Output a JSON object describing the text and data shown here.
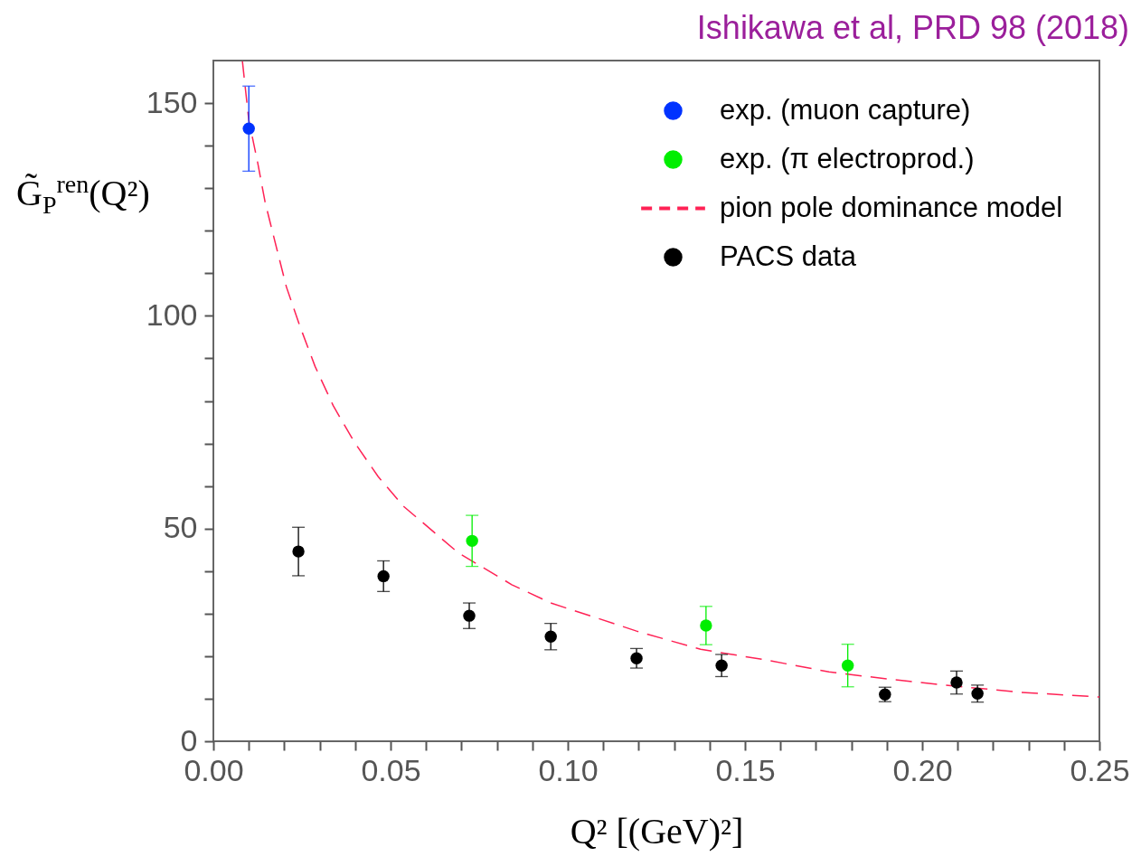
{
  "chart_data": {
    "type": "scatter",
    "title": "Ishikawa et al, PRD 98 (2018)",
    "xlabel": "Q² [(GeV)²]",
    "ylabel": "G̃$_{P}$$^{ren}$(Q²)",
    "xlim": [
      0,
      0.25
    ],
    "ylim": [
      0,
      160
    ],
    "xticks": [
      {
        "value": 0,
        "label": "0.00"
      },
      {
        "value": 0.01,
        "label": null
      },
      {
        "value": 0.02,
        "label": null
      },
      {
        "value": 0.03,
        "label": null
      },
      {
        "value": 0.04,
        "label": null
      },
      {
        "value": 0.05,
        "label": "0.05"
      },
      {
        "value": 0.06,
        "label": null
      },
      {
        "value": 0.07,
        "label": null
      },
      {
        "value": 0.08,
        "label": null
      },
      {
        "value": 0.09,
        "label": null
      },
      {
        "value": 0.1,
        "label": "0.10"
      },
      {
        "value": 0.11,
        "label": null
      },
      {
        "value": 0.12,
        "label": null
      },
      {
        "value": 0.13,
        "label": null
      },
      {
        "value": 0.14,
        "label": null
      },
      {
        "value": 0.15,
        "label": "0.15"
      },
      {
        "value": 0.16,
        "label": null
      },
      {
        "value": 0.17,
        "label": null
      },
      {
        "value": 0.18,
        "label": null
      },
      {
        "value": 0.19,
        "label": null
      },
      {
        "value": 0.2,
        "label": "0.20"
      },
      {
        "value": 0.21,
        "label": null
      },
      {
        "value": 0.22,
        "label": null
      },
      {
        "value": 0.23,
        "label": null
      },
      {
        "value": 0.24,
        "label": null
      },
      {
        "value": 0.25,
        "label": "0.25"
      }
    ],
    "yticks": [
      0,
      {
        "value": 10,
        "label": null
      },
      {
        "value": 20,
        "label": null
      },
      {
        "value": 30,
        "label": null
      },
      {
        "value": 40,
        "label": null
      },
      50,
      {
        "value": 60,
        "label": null
      },
      {
        "value": 70,
        "label": null
      },
      {
        "value": 80,
        "label": null
      },
      {
        "value": 90,
        "label": null
      },
      100,
      {
        "value": 110,
        "label": null
      },
      {
        "value": 120,
        "label": null
      },
      {
        "value": 130,
        "label": null
      },
      {
        "value": 140,
        "label": null
      },
      150
    ],
    "legend": "top right",
    "marker": "circle",
    "grid": false,
    "series": [
      {
        "name": "exp. (muon capture)",
        "color": "#0033ff",
        "x": [
          0.01
        ],
        "values": [
          144
        ],
        "errors": [
          10
        ]
      },
      {
        "name": "exp. (π electroprod.)",
        "color": "#00ee00",
        "x": [
          0.073,
          0.139,
          0.179
        ],
        "values": [
          47.1,
          27.2,
          17.8
        ],
        "errors": [
          6,
          4.5,
          5
        ]
      },
      {
        "name": "pion pole dominance model",
        "type": "line",
        "marker": "none",
        "line_style": "dashed",
        "color": "#ff2255",
        "x": [
          0.0082,
          0.01,
          0.0125,
          0.0146,
          0.0176,
          0.0206,
          0.0244,
          0.0287,
          0.0338,
          0.0397,
          0.0465,
          0.0537,
          0.0691,
          0.0842,
          0.0952,
          0.107,
          0.1194,
          0.1375,
          0.156,
          0.1737,
          0.1906,
          0.21,
          0.228,
          0.25
        ],
        "values": [
          159.8,
          146,
          136,
          126.7,
          116.7,
          106.8,
          97.6,
          88.1,
          78.9,
          70.4,
          62.2,
          55.2,
          44.3,
          36.8,
          32.5,
          29.3,
          25.9,
          21.6,
          19.1,
          16.3,
          14.6,
          12.9,
          11.5,
          10.4
        ]
      },
      {
        "name": "PACS data",
        "color": "#000000",
        "x": [
          0.024,
          0.048,
          0.0722,
          0.0952,
          0.1194,
          0.1434,
          0.1895,
          0.2097,
          0.2156
        ],
        "values": [
          44.6,
          38.8,
          29.5,
          24.6,
          19.5,
          17.8,
          11,
          13.8,
          11.2
        ],
        "errors": [
          5.7,
          3.6,
          3,
          3.1,
          2.3,
          2.6,
          1.7,
          2.7,
          2
        ]
      }
    ]
  }
}
